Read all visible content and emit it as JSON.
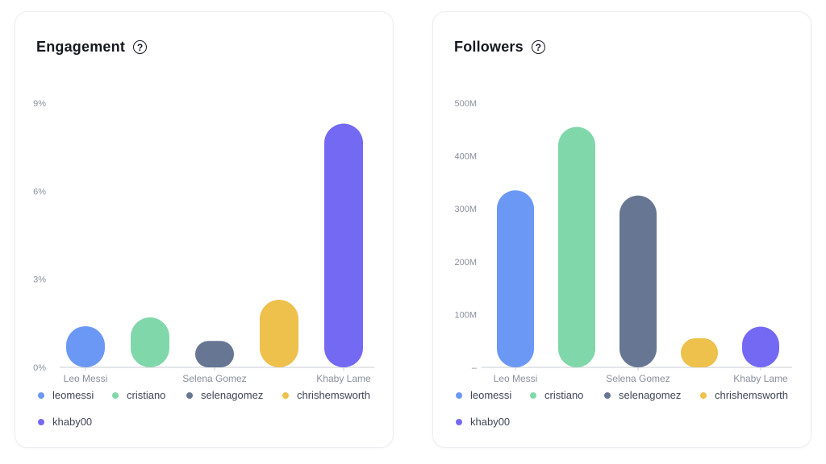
{
  "colors": {
    "leomessi": "#6a98f4",
    "cristiano": "#80d8aa",
    "selenagomez": "#667693",
    "chrishemsworth": "#eec04c",
    "khaby00": "#7469f3",
    "axis": "#c9ccd3",
    "tick_text": "#8a8f9c"
  },
  "chart_data": [
    {
      "type": "bar",
      "title": "Engagement",
      "help_icon": "question-circle-icon",
      "categories": [
        "leomessi",
        "cristiano",
        "selenagomez",
        "chrishemsworth",
        "khaby00"
      ],
      "x_tick_labels": [
        {
          "label": "Leo Messi",
          "index": 0
        },
        {
          "label": "Selena Gomez",
          "index": 2
        },
        {
          "label": "Khaby Lame",
          "index": 4
        }
      ],
      "values": [
        1.4,
        1.7,
        0.9,
        2.3,
        8.3
      ],
      "unit": "%",
      "ylim": [
        0,
        9
      ],
      "y_ticks": [
        {
          "value": 0,
          "label": "0%"
        },
        {
          "value": 3,
          "label": "3%"
        },
        {
          "value": 6,
          "label": "6%"
        },
        {
          "value": 9,
          "label": "9%"
        }
      ],
      "legend": [
        "leomessi",
        "cristiano",
        "selenagomez",
        "chrishemsworth",
        "khaby00"
      ],
      "legend_position": "bottom",
      "grid": false
    },
    {
      "type": "bar",
      "title": "Followers",
      "help_icon": "question-circle-icon",
      "categories": [
        "leomessi",
        "cristiano",
        "selenagomez",
        "chrishemsworth",
        "khaby00"
      ],
      "x_tick_labels": [
        {
          "label": "Leo Messi",
          "index": 0
        },
        {
          "label": "Selena Gomez",
          "index": 2
        },
        {
          "label": "Khaby Lame",
          "index": 4
        }
      ],
      "values": [
        335,
        455,
        325,
        55,
        77
      ],
      "unit": "M",
      "ylim": [
        0,
        500
      ],
      "y_ticks": [
        {
          "value": 0,
          "label": "–"
        },
        {
          "value": 100,
          "label": "100M"
        },
        {
          "value": 200,
          "label": "200M"
        },
        {
          "value": 300,
          "label": "300M"
        },
        {
          "value": 400,
          "label": "400M"
        },
        {
          "value": 500,
          "label": "500M"
        }
      ],
      "legend": [
        "leomessi",
        "cristiano",
        "selenagomez",
        "chrishemsworth",
        "khaby00"
      ],
      "legend_position": "bottom",
      "grid": false
    }
  ]
}
